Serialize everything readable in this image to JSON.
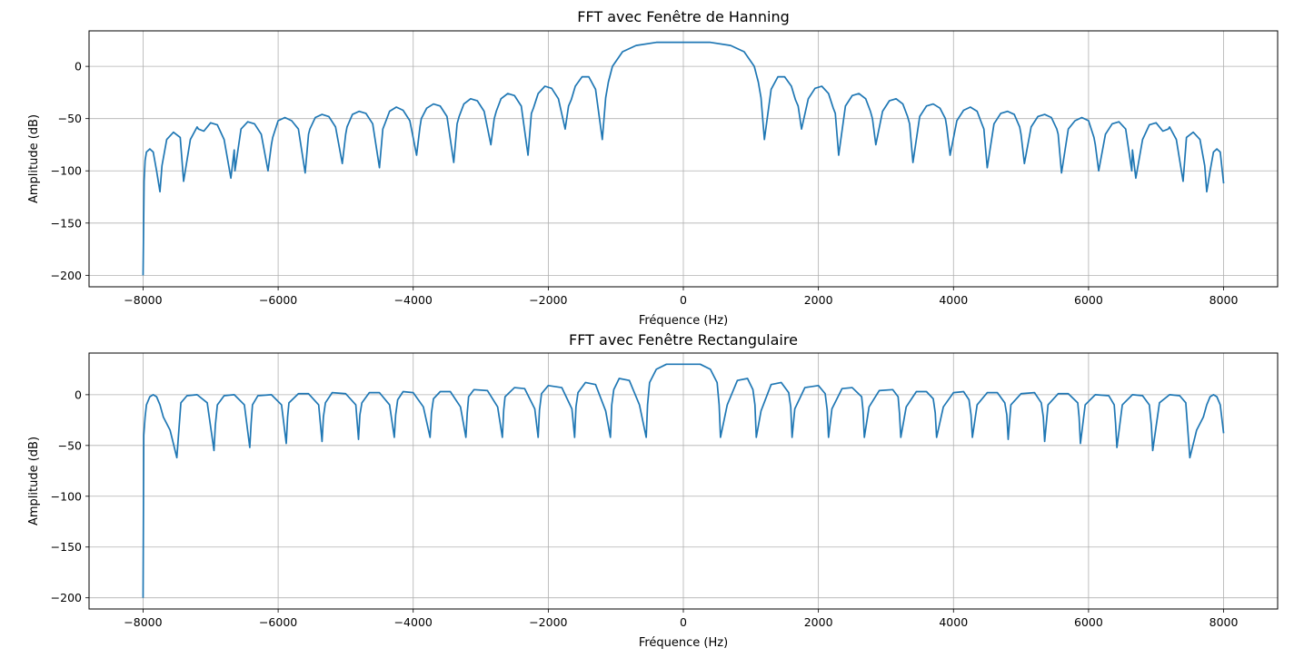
{
  "chart_data": [
    {
      "type": "line",
      "title": "FFT avec Fenêtre de Hanning",
      "xlabel": "Fréquence (Hz)",
      "ylabel": "Amplitude (dB)",
      "xlim": [
        -8800,
        8800
      ],
      "ylim": [
        -211,
        34
      ],
      "xticks": [
        -8000,
        -6000,
        -4000,
        -2000,
        0,
        2000,
        4000,
        6000,
        8000
      ],
      "xtick_labels": [
        "−8000",
        "−6000",
        "−4000",
        "−2000",
        "0",
        "2000",
        "4000",
        "6000",
        "8000"
      ],
      "yticks": [
        0,
        -50,
        -100,
        -150,
        -200
      ],
      "ytick_labels": [
        "0",
        "−50",
        "−100",
        "−150",
        "−200"
      ],
      "grid": true,
      "line_color": "#1f77b4",
      "series": [
        {
          "x": [
            -8000,
            -7985,
            -7970,
            -7950,
            -7900,
            -7850,
            -7800,
            -7750,
            -7720,
            -7650,
            -7550,
            -7450,
            -7400,
            -7300,
            -7200,
            -7180,
            -7100,
            -7000,
            -6900,
            -6800,
            -6700,
            -6650,
            -6640,
            -6550,
            -6450,
            -6350,
            -6250,
            -6150,
            -6100,
            -6080,
            -6000,
            -5900,
            -5800,
            -5700,
            -5600,
            -5550,
            -5530,
            -5450,
            -5350,
            -5250,
            -5150,
            -5050,
            -5000,
            -4980,
            -4900,
            -4800,
            -4700,
            -4600,
            -4500,
            -4450,
            -4420,
            -4350,
            -4250,
            -4150,
            -4050,
            -3950,
            -3900,
            -3880,
            -3800,
            -3700,
            -3600,
            -3500,
            -3400,
            -3350,
            -3320,
            -3250,
            -3150,
            -3050,
            -2950,
            -2850,
            -2800,
            -2770,
            -2700,
            -2600,
            -2500,
            -2400,
            -2300,
            -2250,
            -2220,
            -2150,
            -2050,
            -1950,
            -1850,
            -1750,
            -1700,
            -1660,
            -1600,
            -1500,
            -1400,
            -1300,
            -1200,
            -1150,
            -1110,
            -1050,
            -900,
            -700,
            -400,
            0,
            400,
            700,
            900,
            1050,
            1110,
            1150,
            1200,
            1300,
            1400,
            1500,
            1600,
            1660,
            1700,
            1750,
            1850,
            1950,
            2050,
            2150,
            2220,
            2250,
            2300,
            2400,
            2500,
            2600,
            2700,
            2770,
            2800,
            2850,
            2950,
            3050,
            3150,
            3250,
            3320,
            3350,
            3400,
            3500,
            3600,
            3700,
            3800,
            3880,
            3900,
            3950,
            4050,
            4150,
            4250,
            4350,
            4420,
            4450,
            4500,
            4600,
            4700,
            4800,
            4900,
            4980,
            5000,
            5050,
            5150,
            5250,
            5350,
            5450,
            5530,
            5550,
            5600,
            5700,
            5800,
            5900,
            6000,
            6080,
            6100,
            6150,
            6250,
            6350,
            6450,
            6550,
            6640,
            6650,
            6700,
            6800,
            6900,
            7000,
            7100,
            7180,
            7200,
            7300,
            7400,
            7450,
            7550,
            7650,
            7720,
            7750,
            7800,
            7850,
            7900,
            7950,
            8000
          ],
          "y": [
            -200,
            -110,
            -90,
            -82,
            -79,
            -82,
            -100,
            -120,
            -95,
            -70,
            -63,
            -68,
            -110,
            -70,
            -58,
            -60,
            -62,
            -54,
            -56,
            -70,
            -107,
            -80,
            -100,
            -60,
            -53,
            -55,
            -65,
            -100,
            -75,
            -68,
            -52,
            -49,
            -52,
            -60,
            -102,
            -65,
            -60,
            -49,
            -46,
            -48,
            -58,
            -93,
            -65,
            -58,
            -46,
            -43,
            -45,
            -55,
            -97,
            -60,
            -55,
            -43,
            -39,
            -42,
            -52,
            -85,
            -58,
            -50,
            -40,
            -36,
            -38,
            -48,
            -92,
            -55,
            -48,
            -36,
            -31,
            -33,
            -43,
            -75,
            -50,
            -43,
            -31,
            -26,
            -28,
            -38,
            -85,
            -45,
            -40,
            -26,
            -19,
            -21,
            -31,
            -60,
            -38,
            -32,
            -19,
            -10,
            -10,
            -22,
            -70,
            -30,
            -15,
            0,
            14,
            20,
            23,
            23,
            23,
            20,
            14,
            0,
            -15,
            -30,
            -70,
            -22,
            -10,
            -10,
            -19,
            -32,
            -38,
            -60,
            -31,
            -21,
            -19,
            -26,
            -40,
            -45,
            -85,
            -38,
            -28,
            -26,
            -31,
            -43,
            -50,
            -75,
            -43,
            -33,
            -31,
            -36,
            -48,
            -55,
            -92,
            -48,
            -38,
            -36,
            -40,
            -50,
            -58,
            -85,
            -52,
            -42,
            -39,
            -43,
            -55,
            -60,
            -97,
            -55,
            -45,
            -43,
            -46,
            -58,
            -65,
            -93,
            -58,
            -48,
            -46,
            -49,
            -60,
            -65,
            -102,
            -60,
            -52,
            -49,
            -52,
            -68,
            -75,
            -100,
            -65,
            -55,
            -53,
            -60,
            -100,
            -80,
            -107,
            -70,
            -56,
            -54,
            -62,
            -60,
            -58,
            -70,
            -110,
            -68,
            -63,
            -70,
            -95,
            -120,
            -100,
            -82,
            -79,
            -82,
            -112
          ]
        }
      ]
    },
    {
      "type": "line",
      "title": "FFT avec Fenêtre Rectangulaire",
      "xlabel": "Fréquence (Hz)",
      "ylabel": "Amplitude (dB)",
      "xlim": [
        -8800,
        8800
      ],
      "ylim": [
        -211,
        41
      ],
      "xticks": [
        -8000,
        -6000,
        -4000,
        -2000,
        0,
        2000,
        4000,
        6000,
        8000
      ],
      "xtick_labels": [
        "−8000",
        "−6000",
        "−4000",
        "−2000",
        "0",
        "2000",
        "4000",
        "6000",
        "8000"
      ],
      "yticks": [
        0,
        -50,
        -100,
        -150,
        -200
      ],
      "ytick_labels": [
        "0",
        "−50",
        "−100",
        "−150",
        "−200"
      ],
      "grid": true,
      "line_color": "#1f77b4",
      "series": [
        {
          "x": [
            -8000,
            -7990,
            -7970,
            -7950,
            -7900,
            -7850,
            -7800,
            -7750,
            -7700,
            -7600,
            -7500,
            -7470,
            -7440,
            -7350,
            -7200,
            -7050,
            -6950,
            -6930,
            -6900,
            -6800,
            -6650,
            -6500,
            -6420,
            -6400,
            -6380,
            -6300,
            -6100,
            -5950,
            -5880,
            -5860,
            -5840,
            -5700,
            -5550,
            -5400,
            -5350,
            -5330,
            -5300,
            -5200,
            -5000,
            -4850,
            -4810,
            -4790,
            -4760,
            -4650,
            -4500,
            -4350,
            -4280,
            -4260,
            -4230,
            -4150,
            -4000,
            -3850,
            -3750,
            -3730,
            -3700,
            -3600,
            -3450,
            -3300,
            -3220,
            -3200,
            -3180,
            -3100,
            -2900,
            -2750,
            -2680,
            -2660,
            -2640,
            -2500,
            -2350,
            -2200,
            -2150,
            -2130,
            -2100,
            -2000,
            -1800,
            -1650,
            -1610,
            -1590,
            -1560,
            -1450,
            -1300,
            -1150,
            -1080,
            -1060,
            -1030,
            -950,
            -800,
            -650,
            -550,
            -530,
            -500,
            -400,
            -250,
            0,
            250,
            400,
            500,
            530,
            550,
            650,
            800,
            950,
            1030,
            1060,
            1080,
            1150,
            1300,
            1450,
            1560,
            1590,
            1610,
            1650,
            1800,
            2000,
            2100,
            2130,
            2150,
            2200,
            2350,
            2500,
            2640,
            2660,
            2680,
            2750,
            2900,
            3100,
            3180,
            3200,
            3220,
            3300,
            3450,
            3600,
            3700,
            3730,
            3750,
            3850,
            4000,
            4150,
            4230,
            4260,
            4280,
            4350,
            4500,
            4650,
            4760,
            4790,
            4810,
            4850,
            5000,
            5200,
            5300,
            5330,
            5350,
            5400,
            5550,
            5700,
            5840,
            5860,
            5880,
            5950,
            6100,
            6300,
            6380,
            6400,
            6420,
            6500,
            6650,
            6800,
            6900,
            6930,
            6950,
            7050,
            7200,
            7350,
            7440,
            7470,
            7500,
            7600,
            7700,
            7750,
            7800,
            7850,
            7900,
            7950,
            8000
          ],
          "y": [
            -200,
            -40,
            -22,
            -10,
            -2,
            0,
            -2,
            -10,
            -22,
            -35,
            -62,
            -35,
            -8,
            -1,
            0,
            -8,
            -55,
            -30,
            -10,
            -1,
            0,
            -10,
            -52,
            -28,
            -10,
            -1,
            0,
            -10,
            -48,
            -22,
            -8,
            1,
            1,
            -10,
            -46,
            -22,
            -8,
            2,
            1,
            -10,
            -44,
            -20,
            -8,
            2,
            2,
            -10,
            -42,
            -20,
            -5,
            3,
            2,
            -12,
            -42,
            -18,
            -4,
            3,
            3,
            -12,
            -42,
            -18,
            -2,
            5,
            4,
            -12,
            -42,
            -15,
            -2,
            7,
            6,
            -14,
            -42,
            -15,
            1,
            9,
            7,
            -14,
            -42,
            -12,
            2,
            12,
            10,
            -16,
            -42,
            -10,
            5,
            16,
            14,
            -10,
            -42,
            -10,
            12,
            25,
            30,
            30,
            30,
            25,
            12,
            -10,
            -42,
            -10,
            14,
            16,
            5,
            -10,
            -42,
            -16,
            10,
            12,
            2,
            -12,
            -42,
            -14,
            7,
            9,
            1,
            -15,
            -42,
            -14,
            6,
            7,
            -2,
            -15,
            -42,
            -12,
            4,
            5,
            -2,
            -18,
            -42,
            -12,
            3,
            3,
            -4,
            -18,
            -42,
            -12,
            2,
            3,
            -5,
            -20,
            -42,
            -10,
            2,
            2,
            -8,
            -20,
            -44,
            -10,
            1,
            2,
            -8,
            -22,
            -46,
            -10,
            1,
            1,
            -8,
            -22,
            -48,
            -10,
            0,
            -1,
            -10,
            -28,
            -52,
            -10,
            0,
            -1,
            -10,
            -30,
            -55,
            -8,
            0,
            -1,
            -8,
            -35,
            -62,
            -35,
            -22,
            -10,
            -2,
            0,
            -2,
            -10,
            -38
          ]
        }
      ]
    }
  ]
}
